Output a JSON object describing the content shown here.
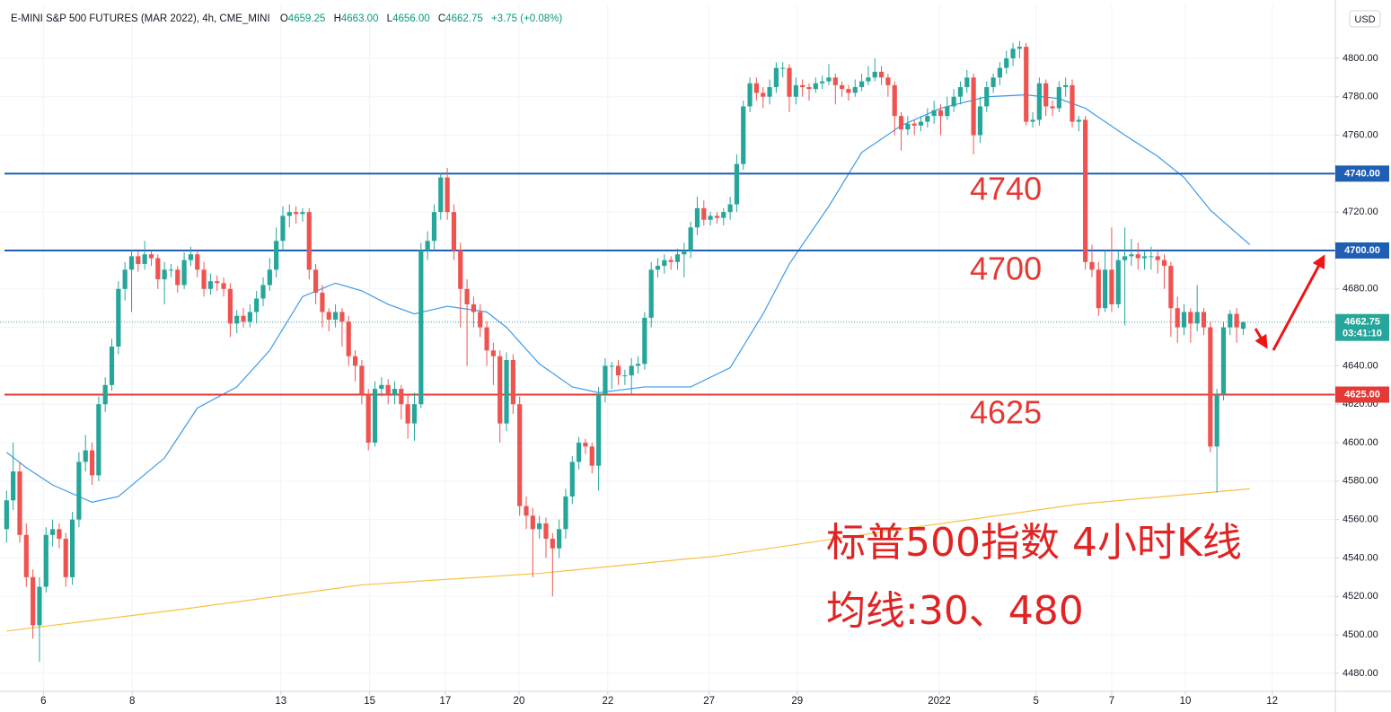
{
  "header": {
    "symbol": "E-MINI S&P 500 FUTURES (MAR 2022), 4h, CME_MINI",
    "open_label": "O",
    "open": "4659.25",
    "high_label": "H",
    "high": "4663.00",
    "low_label": "L",
    "low": "4656.00",
    "close_label": "C",
    "close": "4662.75",
    "change": "+3.75 (+0.08%)"
  },
  "chart_data": {
    "type": "candlestick",
    "currency": "USD",
    "up_color": "#26a69a",
    "down_color": "#ef5350",
    "xlim": [
      -1,
      202
    ],
    "ylim": [
      4470.6,
      4828
    ],
    "xticks": [
      {
        "value": 5.6,
        "label": "6"
      },
      {
        "value": 19.1,
        "label": "8"
      },
      {
        "value": 41.7,
        "label": "13"
      },
      {
        "value": 55.2,
        "label": "15"
      },
      {
        "value": 66.7,
        "label": "17"
      },
      {
        "value": 77.9,
        "label": "20"
      },
      {
        "value": 91.4,
        "label": "22"
      },
      {
        "value": 106.8,
        "label": "27"
      },
      {
        "value": 120.2,
        "label": "29"
      },
      {
        "value": 141.8,
        "label": "2022"
      },
      {
        "value": 156.5,
        "label": "5"
      },
      {
        "value": 168,
        "label": "7"
      },
      {
        "value": 179.2,
        "label": "10"
      },
      {
        "value": 192.4,
        "label": "12"
      }
    ],
    "yticks": [
      {
        "value": 4480,
        "label": "4480.00"
      },
      {
        "value": 4500,
        "label": "4500.00"
      },
      {
        "value": 4520,
        "label": "4520.00"
      },
      {
        "value": 4540,
        "label": "4540.00"
      },
      {
        "value": 4560,
        "label": "4560.00"
      },
      {
        "value": 4580,
        "label": "4580.00"
      },
      {
        "value": 4600,
        "label": "4600.00"
      },
      {
        "value": 4620,
        "label": "4620.00"
      },
      {
        "value": 4640,
        "label": "4640.00"
      },
      {
        "value": 4660,
        "label": "4660.00"
      },
      {
        "value": 4680,
        "label": "4680.00"
      },
      {
        "value": 4700,
        "label": "4700.00"
      },
      {
        "value": 4720,
        "label": "4720.00"
      },
      {
        "value": 4740,
        "label": "4740.00"
      },
      {
        "value": 4760,
        "label": "4760.00"
      },
      {
        "value": 4780,
        "label": "4780.00"
      },
      {
        "value": 4800,
        "label": "4800.00"
      }
    ],
    "grid": true,
    "candles": [
      [
        4555,
        4575,
        4548,
        4570
      ],
      [
        4570,
        4600,
        4565,
        4585
      ],
      [
        4585,
        4590,
        4548,
        4552
      ],
      [
        4552,
        4558,
        4525,
        4530
      ],
      [
        4530,
        4534,
        4498,
        4505
      ],
      [
        4505,
        4530,
        4486,
        4525
      ],
      [
        4525,
        4556,
        4522,
        4552
      ],
      [
        4552,
        4560,
        4546,
        4555
      ],
      [
        4555,
        4558,
        4545,
        4550
      ],
      [
        4550,
        4553,
        4525,
        4530
      ],
      [
        4530,
        4564,
        4526,
        4560
      ],
      [
        4560,
        4595,
        4556,
        4590
      ],
      [
        4590,
        4604,
        4585,
        4596
      ],
      [
        4596,
        4600,
        4578,
        4583
      ],
      [
        4583,
        4624,
        4580,
        4620
      ],
      [
        4620,
        4634,
        4616,
        4630
      ],
      [
        4630,
        4654,
        4627,
        4650
      ],
      [
        4650,
        4684,
        4646,
        4680
      ],
      [
        4680,
        4694,
        4674,
        4690
      ],
      [
        4690,
        4700,
        4668,
        4697
      ],
      [
        4697,
        4700,
        4689,
        4693
      ],
      [
        4693,
        4705,
        4690,
        4698
      ],
      [
        4698,
        4700,
        4692,
        4696
      ],
      [
        4696,
        4698,
        4680,
        4685
      ],
      [
        4685,
        4694,
        4672,
        4690
      ],
      [
        4690,
        4693,
        4686,
        4690
      ],
      [
        4690,
        4692,
        4678,
        4682
      ],
      [
        4682,
        4699,
        4680,
        4695
      ],
      [
        4695,
        4702,
        4692,
        4698
      ],
      [
        4698,
        4700,
        4686,
        4690
      ],
      [
        4690,
        4694,
        4676,
        4680
      ],
      [
        4680,
        4688,
        4677,
        4684
      ],
      [
        4684,
        4687,
        4679,
        4683
      ],
      [
        4683,
        4686,
        4676,
        4680
      ],
      [
        4680,
        4683,
        4655,
        4662
      ],
      [
        4662,
        4669,
        4657,
        4666
      ],
      [
        4666,
        4670,
        4660,
        4663
      ],
      [
        4663,
        4672,
        4660,
        4668
      ],
      [
        4668,
        4679,
        4662,
        4675
      ],
      [
        4675,
        4686,
        4671,
        4682
      ],
      [
        4682,
        4696,
        4679,
        4690
      ],
      [
        4690,
        4712,
        4686,
        4705
      ],
      [
        4705,
        4723,
        4700,
        4718
      ],
      [
        4718,
        4724,
        4712,
        4720
      ],
      [
        4720,
        4723,
        4714,
        4719
      ],
      [
        4719,
        4722,
        4715,
        4720
      ],
      [
        4720,
        4722,
        4685,
        4690
      ],
      [
        4690,
        4693,
        4672,
        4678
      ],
      [
        4678,
        4682,
        4660,
        4668
      ],
      [
        4668,
        4670,
        4658,
        4664
      ],
      [
        4664,
        4672,
        4660,
        4668
      ],
      [
        4668,
        4670,
        4650,
        4663
      ],
      [
        4663,
        4666,
        4640,
        4645
      ],
      [
        4645,
        4648,
        4632,
        4640
      ],
      [
        4640,
        4643,
        4620,
        4625
      ],
      [
        4625,
        4628,
        4596,
        4600
      ],
      [
        4600,
        4632,
        4598,
        4628
      ],
      [
        4628,
        4634,
        4624,
        4630
      ],
      [
        4630,
        4633,
        4620,
        4625
      ],
      [
        4625,
        4632,
        4620,
        4628
      ],
      [
        4628,
        4630,
        4612,
        4620
      ],
      [
        4620,
        4625,
        4602,
        4610
      ],
      [
        4610,
        4626,
        4601,
        4620
      ],
      [
        4620,
        4704,
        4618,
        4700
      ],
      [
        4700,
        4710,
        4695,
        4705
      ],
      [
        4705,
        4724,
        4700,
        4720
      ],
      [
        4720,
        4740,
        4716,
        4738
      ],
      [
        4738,
        4743,
        4716,
        4720
      ],
      [
        4720,
        4724,
        4695,
        4700
      ],
      [
        4700,
        4704,
        4660,
        4680
      ],
      [
        4680,
        4685,
        4640,
        4672
      ],
      [
        4672,
        4676,
        4660,
        4668
      ],
      [
        4668,
        4672,
        4655,
        4660
      ],
      [
        4660,
        4663,
        4640,
        4648
      ],
      [
        4648,
        4652,
        4630,
        4645
      ],
      [
        4645,
        4648,
        4600,
        4610
      ],
      [
        4610,
        4647,
        4606,
        4643
      ],
      [
        4643,
        4646,
        4615,
        4620
      ],
      [
        4620,
        4624,
        4562,
        4567
      ],
      [
        4567,
        4572,
        4555,
        4562
      ],
      [
        4562,
        4566,
        4530,
        4555
      ],
      [
        4555,
        4562,
        4550,
        4558
      ],
      [
        4558,
        4561,
        4540,
        4550
      ],
      [
        4550,
        4553,
        4520,
        4545
      ],
      [
        4545,
        4560,
        4540,
        4555
      ],
      [
        4555,
        4576,
        4550,
        4572
      ],
      [
        4572,
        4593,
        4568,
        4590
      ],
      [
        4590,
        4603,
        4586,
        4600
      ],
      [
        4600,
        4602,
        4594,
        4598
      ],
      [
        4598,
        4600,
        4584,
        4588
      ],
      [
        4588,
        4629,
        4575,
        4625
      ],
      [
        4625,
        4644,
        4621,
        4640
      ],
      [
        4640,
        4642,
        4628,
        4640
      ],
      [
        4640,
        4643,
        4630,
        4635
      ],
      [
        4635,
        4638,
        4630,
        4635
      ],
      [
        4635,
        4644,
        4625,
        4640
      ],
      [
        4640,
        4645,
        4636,
        4641
      ],
      [
        4641,
        4668,
        4638,
        4665
      ],
      [
        4665,
        4694,
        4660,
        4690
      ],
      [
        4690,
        4696,
        4686,
        4692
      ],
      [
        4692,
        4698,
        4688,
        4695
      ],
      [
        4695,
        4697,
        4690,
        4694
      ],
      [
        4694,
        4701,
        4690,
        4698
      ],
      [
        4698,
        4704,
        4686,
        4700
      ],
      [
        4700,
        4715,
        4696,
        4712
      ],
      [
        4712,
        4728,
        4708,
        4722
      ],
      [
        4722,
        4726,
        4713,
        4716
      ],
      [
        4716,
        4720,
        4713,
        4718
      ],
      [
        4718,
        4720,
        4714,
        4717
      ],
      [
        4717,
        4722,
        4713,
        4720
      ],
      [
        4720,
        4728,
        4716,
        4724
      ],
      [
        4724,
        4750,
        4720,
        4745
      ],
      [
        4745,
        4778,
        4742,
        4775
      ],
      [
        4775,
        4790,
        4772,
        4787
      ],
      [
        4787,
        4790,
        4778,
        4782
      ],
      [
        4782,
        4785,
        4774,
        4780
      ],
      [
        4780,
        4789,
        4776,
        4785
      ],
      [
        4785,
        4798,
        4782,
        4795
      ],
      [
        4795,
        4798,
        4790,
        4795
      ],
      [
        4795,
        4797,
        4772,
        4780
      ],
      [
        4780,
        4790,
        4776,
        4786
      ],
      [
        4786,
        4789,
        4780,
        4785
      ],
      [
        4785,
        4787,
        4778,
        4784
      ],
      [
        4784,
        4790,
        4782,
        4787
      ],
      [
        4787,
        4791,
        4784,
        4788
      ],
      [
        4788,
        4797,
        4786,
        4790
      ],
      [
        4790,
        4792,
        4776,
        4786
      ],
      [
        4786,
        4788,
        4780,
        4784
      ],
      [
        4784,
        4786,
        4778,
        4782
      ],
      [
        4782,
        4789,
        4780,
        4785
      ],
      [
        4785,
        4792,
        4783,
        4788
      ],
      [
        4788,
        4796,
        4786,
        4790
      ],
      [
        4790,
        4800,
        4788,
        4793
      ],
      [
        4793,
        4796,
        4786,
        4790
      ],
      [
        4790,
        4792,
        4780,
        4786
      ],
      [
        4786,
        4788,
        4760,
        4770
      ],
      [
        4770,
        4772,
        4752,
        4763
      ],
      [
        4763,
        4770,
        4760,
        4766
      ],
      [
        4766,
        4768,
        4760,
        4765
      ],
      [
        4765,
        4770,
        4762,
        4767
      ],
      [
        4767,
        4774,
        4764,
        4770
      ],
      [
        4770,
        4778,
        4766,
        4773
      ],
      [
        4773,
        4776,
        4760,
        4770
      ],
      [
        4770,
        4780,
        4768,
        4775
      ],
      [
        4775,
        4784,
        4772,
        4780
      ],
      [
        4780,
        4788,
        4776,
        4785
      ],
      [
        4785,
        4794,
        4782,
        4790
      ],
      [
        4790,
        4792,
        4750,
        4760
      ],
      [
        4760,
        4780,
        4756,
        4775
      ],
      [
        4775,
        4788,
        4772,
        4785
      ],
      [
        4785,
        4792,
        4782,
        4790
      ],
      [
        4790,
        4798,
        4786,
        4795
      ],
      [
        4795,
        4804,
        4792,
        4800
      ],
      [
        4800,
        4808,
        4796,
        4805
      ],
      [
        4805,
        4809,
        4800,
        4806
      ],
      [
        4806,
        4808,
        4765,
        4767
      ],
      [
        4767,
        4772,
        4764,
        4768
      ],
      [
        4768,
        4790,
        4765,
        4787
      ],
      [
        4787,
        4789,
        4770,
        4775
      ],
      [
        4775,
        4778,
        4770,
        4774
      ],
      [
        4774,
        4788,
        4772,
        4785
      ],
      [
        4785,
        4790,
        4780,
        4786
      ],
      [
        4786,
        4789,
        4764,
        4767
      ],
      [
        4767,
        4770,
        4762,
        4768
      ],
      [
        4768,
        4770,
        4690,
        4694
      ],
      [
        4694,
        4703,
        4686,
        4690
      ],
      [
        4690,
        4694,
        4666,
        4670
      ],
      [
        4670,
        4700,
        4668,
        4690
      ],
      [
        4690,
        4712,
        4668,
        4672
      ],
      [
        4672,
        4700,
        4670,
        4695
      ],
      [
        4695,
        4712,
        4661,
        4697
      ],
      [
        4697,
        4706,
        4692,
        4698
      ],
      [
        4698,
        4704,
        4690,
        4696
      ],
      [
        4696,
        4700,
        4690,
        4697
      ],
      [
        4697,
        4702,
        4690,
        4697
      ],
      [
        4697,
        4700,
        4688,
        4695
      ],
      [
        4695,
        4698,
        4680,
        4692
      ],
      [
        4692,
        4694,
        4655,
        4670
      ],
      [
        4670,
        4676,
        4652,
        4660
      ],
      [
        4660,
        4672,
        4656,
        4668
      ],
      [
        4668,
        4670,
        4652,
        4662
      ],
      [
        4662,
        4682,
        4658,
        4668
      ],
      [
        4668,
        4670,
        4656,
        4660
      ],
      [
        4660,
        4663,
        4595,
        4598
      ],
      [
        4598,
        4628,
        4574,
        4625
      ],
      [
        4625,
        4663,
        4622,
        4660
      ],
      [
        4660,
        4669,
        4656,
        4667
      ],
      [
        4667,
        4670,
        4652,
        4660
      ],
      [
        4659.25,
        4663,
        4656,
        4662.75
      ]
    ],
    "moving_averages": [
      {
        "color": "#3d9be9",
        "x": [
          0,
          3,
          7,
          13,
          17,
          24,
          29,
          35,
          40,
          45,
          50,
          54,
          58,
          62,
          67,
          73,
          76,
          81,
          86,
          90,
          97,
          104,
          110,
          115,
          119,
          125,
          130,
          136,
          142,
          149,
          155,
          160,
          164,
          170,
          175,
          179,
          183,
          189
        ],
        "values": [
          4595,
          4587,
          4578,
          4569,
          4572,
          4592,
          4618,
          4629,
          4648,
          4676,
          4683,
          4679,
          4672,
          4667,
          4671,
          4668,
          4660,
          4641,
          4629,
          4626,
          4629,
          4629,
          4639,
          4667,
          4693,
          4723,
          4751,
          4765,
          4774,
          4780,
          4781,
          4779,
          4774,
          4760,
          4749,
          4738,
          4721,
          4703
        ]
      },
      {
        "color": "#f5c242",
        "x": [
          0,
          26,
          54,
          81,
          108,
          136,
          163,
          189
        ],
        "values": [
          4502,
          4513,
          4526,
          4532,
          4541,
          4555,
          4568,
          4576
        ]
      }
    ],
    "hlines": [
      {
        "value": 4740,
        "label": "4740.00",
        "color": "#1e5fb4"
      },
      {
        "value": 4700,
        "label": "4700.00",
        "color": "#1e5fb4"
      },
      {
        "value": 4625,
        "label": "4625.00",
        "color": "#e53935"
      }
    ],
    "last_price": 4662.75,
    "last_price_color": "#26a69a",
    "countdown": "03:41:10",
    "annotations": [
      "标普500指数 4小时K线",
      "均线:30、480"
    ]
  }
}
